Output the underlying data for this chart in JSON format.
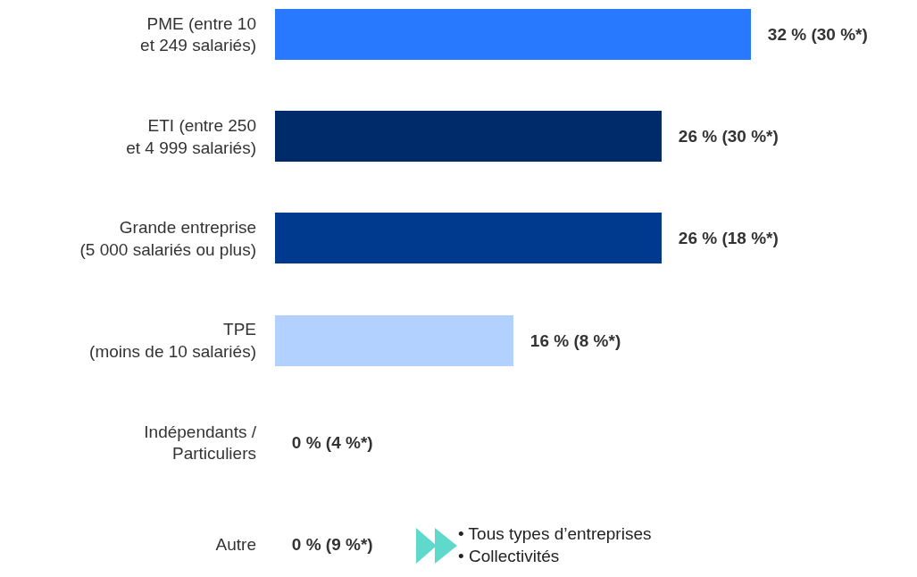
{
  "chart_data": {
    "type": "bar",
    "orientation": "horizontal",
    "categories": [
      "PME (entre 10\net 249 salariés)",
      "ETI (entre 250\net 4 999 salariés)",
      "Grande entreprise\n(5 000 salariés ou plus)",
      "TPE\n(moins de 10 salariés)",
      "Indépendants /\nParticuliers",
      "Autre"
    ],
    "values": [
      32,
      26,
      26,
      16,
      0,
      0
    ],
    "value_labels": [
      "32 % (30 %*)",
      "26 % (30 %*)",
      "26 % (18 %*)",
      "16 % (8 %*)",
      "0 % (4 %*)",
      "0 % (9 %*)"
    ],
    "colors": [
      "#2979ff",
      "#002b6b",
      "#003a8f",
      "#b3d1ff",
      "#b3d1ff",
      "#b3d1ff"
    ],
    "annotations": [
      "• Tous types d’entreprises\n• Collectivités"
    ]
  }
}
